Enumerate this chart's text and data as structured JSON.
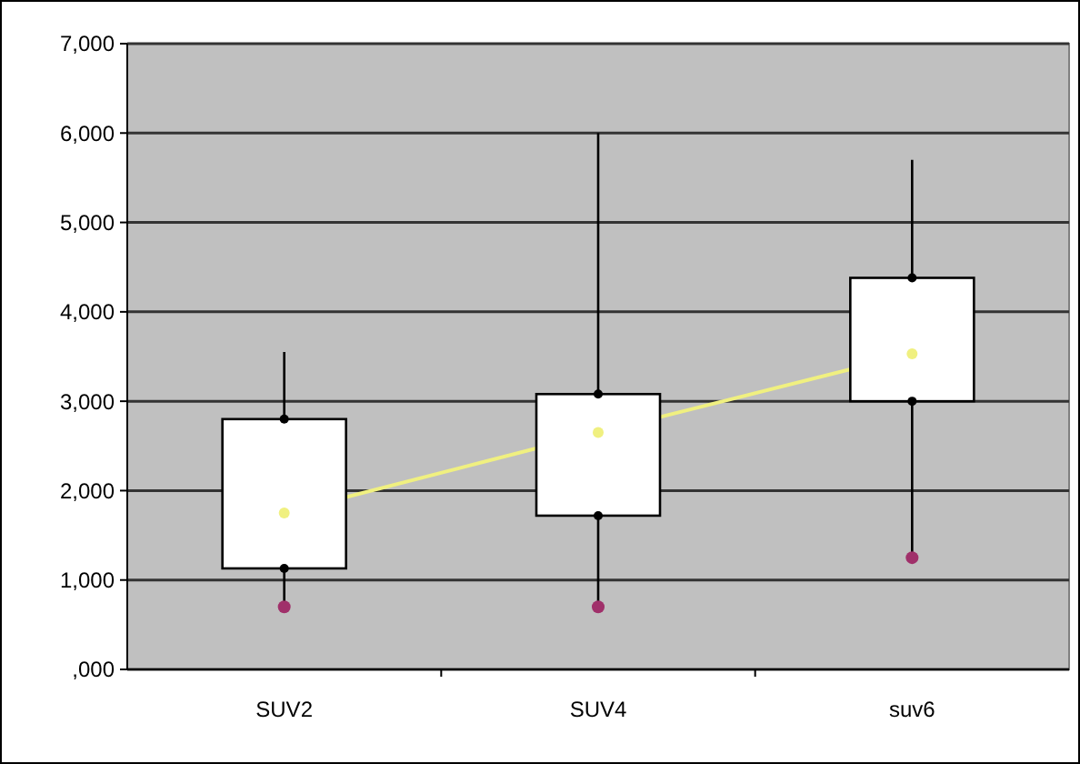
{
  "chart_data": {
    "type": "box",
    "categories": [
      "SUV2",
      "SUV4",
      "suv6"
    ],
    "boxes": [
      {
        "low": 700,
        "q1": 1130,
        "median": 1750,
        "q3": 2800,
        "high": 3550
      },
      {
        "low": 700,
        "q1": 1720,
        "median": 2650,
        "q3": 3080,
        "high": 6000
      },
      {
        "low": 1250,
        "q1": 3000,
        "median": 3530,
        "q3": 4380,
        "high": 5700
      }
    ],
    "series": [
      {
        "type": "line",
        "color": "#f0f080",
        "values": [
          1750,
          2650,
          3530
        ]
      },
      {
        "type": "scatter",
        "color": "#000000",
        "marker": "circle",
        "values": [
          2800,
          3080,
          4380
        ]
      },
      {
        "type": "scatter",
        "color": "#000000",
        "marker": "circle",
        "values": [
          1130,
          1720,
          3000
        ]
      },
      {
        "type": "scatter",
        "color": "#a0306a",
        "marker": "circle",
        "values": [
          700,
          700,
          1250
        ]
      }
    ],
    "ylim": [
      0,
      7000
    ],
    "yticks": [
      {
        "value": 0,
        "label": ",000"
      },
      {
        "value": 1000,
        "label": "1,000"
      },
      {
        "value": 2000,
        "label": "2,000"
      },
      {
        "value": 3000,
        "label": "3,000"
      },
      {
        "value": 4000,
        "label": "4,000"
      },
      {
        "value": 5000,
        "label": "5,000"
      },
      {
        "value": 6000,
        "label": "6,000"
      },
      {
        "value": 7000,
        "label": "7,000"
      }
    ],
    "grid": "y"
  }
}
